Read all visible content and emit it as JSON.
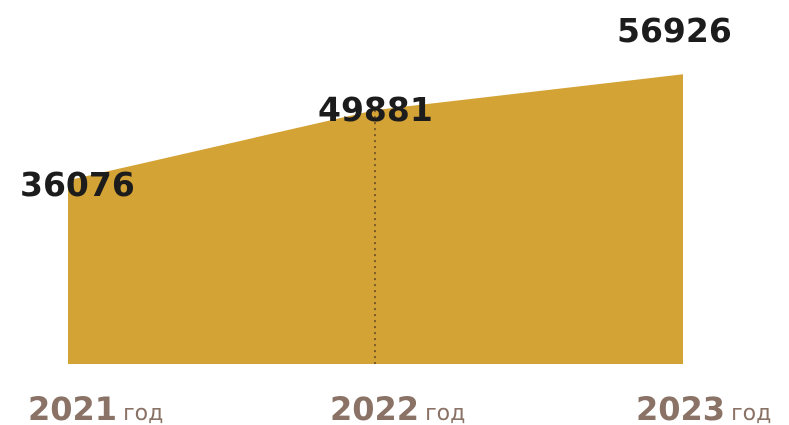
{
  "chart_data": {
    "type": "area",
    "x": [
      "2021",
      "2022",
      "2023"
    ],
    "x_suffix": "год",
    "values": [
      36076,
      49881,
      56926
    ],
    "value_labels": [
      "36076",
      "49881",
      "56926"
    ],
    "fill_color": "#D4A336",
    "divider_color": "#7a5a2a",
    "value_label_color": "#1c1c1c",
    "year_label_color": "#8a7366",
    "title": "",
    "xlabel": "",
    "ylabel": "",
    "grid": false,
    "legend": "none"
  }
}
